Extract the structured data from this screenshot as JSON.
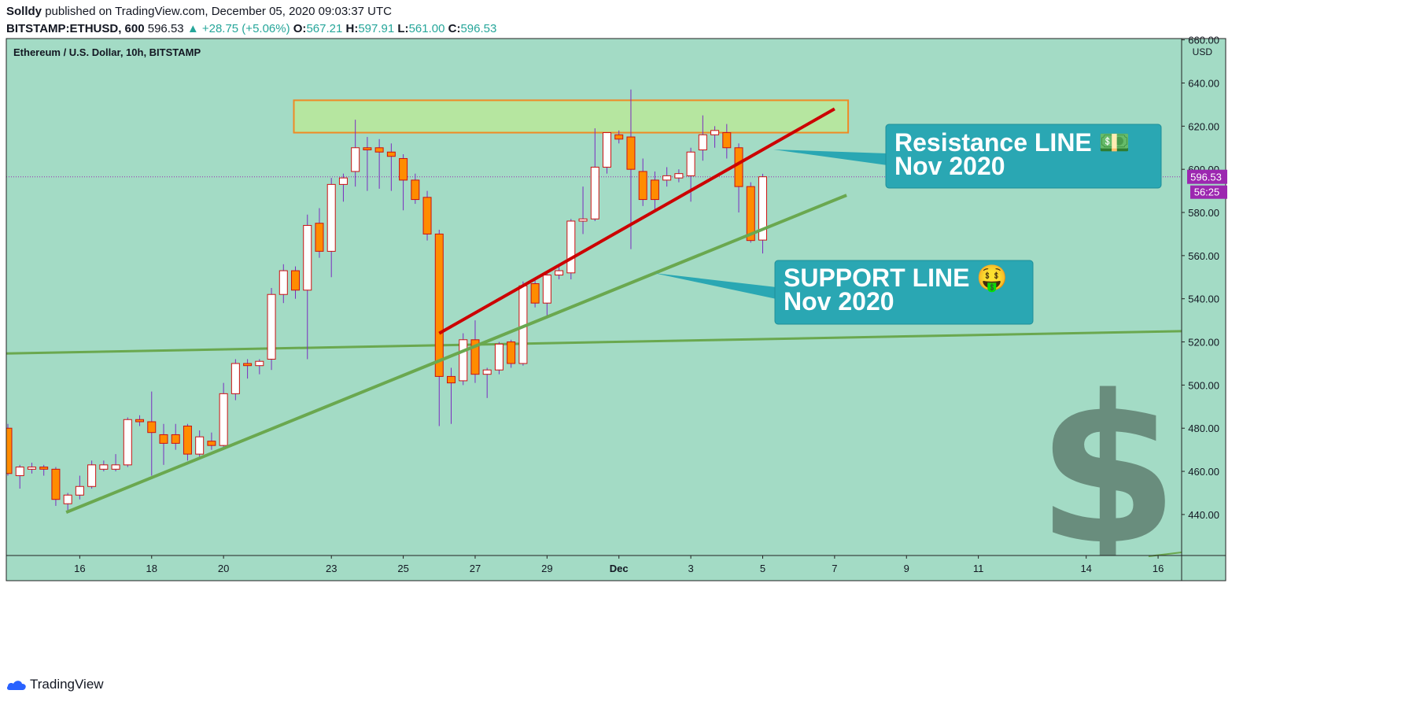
{
  "header": {
    "publisher": "Solldy",
    "published_text": "published on TradingView.com, December 05, 2020 09:03:37 UTC",
    "symbol": "BITSTAMP:ETHUSD, 600",
    "last": "596.53",
    "change": "+28.75 (+5.06%)",
    "o_label": "O:",
    "o_value": "567.21",
    "h_label": "H:",
    "h_value": "597.91",
    "l_label": "L:",
    "l_value": "561.00",
    "c_label": "C:",
    "c_value": "596.53"
  },
  "chart_title": "Ethereum / U.S. Dollar, 10h, BITSTAMP",
  "footer": {
    "brand": "TradingView"
  },
  "colors": {
    "background": "#a3dbc5",
    "bull_body": "#ffffff",
    "bear_body": "#ff8c00",
    "candle_border": "#cc1111",
    "resistance_line": "#cc0000",
    "support_line": "#6aa84f",
    "callout": "#2aa7b3",
    "price_tag": "#9c27b0"
  },
  "chart_data": {
    "type": "candlestick",
    "title": "Ethereum / U.S. Dollar, 10h, BITSTAMP",
    "ylabel": "USD",
    "ylim": [
      421,
      660
    ],
    "y_ticks": [
      "440.00",
      "460.00",
      "480.00",
      "500.00",
      "520.00",
      "540.00",
      "560.00",
      "580.00",
      "600.00",
      "620.00",
      "640.00",
      "660.00"
    ],
    "x_ticks": [
      {
        "label": "16",
        "i": 6
      },
      {
        "label": "18",
        "i": 12
      },
      {
        "label": "20",
        "i": 18
      },
      {
        "label": "23",
        "i": 27
      },
      {
        "label": "25",
        "i": 33
      },
      {
        "label": "27",
        "i": 39
      },
      {
        "label": "29",
        "i": 45
      },
      {
        "label": "Dec",
        "i": 51
      },
      {
        "label": "3",
        "i": 57
      },
      {
        "label": "5",
        "i": 63
      },
      {
        "label": "7",
        "i": 69
      },
      {
        "label": "9",
        "i": 75
      },
      {
        "label": "11",
        "i": 81
      },
      {
        "label": "14",
        "i": 90
      },
      {
        "label": "16",
        "i": 96
      }
    ],
    "candles": [
      {
        "i": 0,
        "o": 480,
        "h": 482,
        "l": 458,
        "c": 459
      },
      {
        "i": 1,
        "o": 458,
        "h": 463,
        "l": 452,
        "c": 462
      },
      {
        "i": 2,
        "o": 461,
        "h": 464,
        "l": 459,
        "c": 462
      },
      {
        "i": 3,
        "o": 462,
        "h": 463,
        "l": 458,
        "c": 461
      },
      {
        "i": 4,
        "o": 461,
        "h": 462,
        "l": 444,
        "c": 447
      },
      {
        "i": 5,
        "o": 445,
        "h": 450,
        "l": 442,
        "c": 449
      },
      {
        "i": 6,
        "o": 449,
        "h": 458,
        "l": 447,
        "c": 453
      },
      {
        "i": 7,
        "o": 453,
        "h": 465,
        "l": 452,
        "c": 463
      },
      {
        "i": 8,
        "o": 461,
        "h": 465,
        "l": 460,
        "c": 463
      },
      {
        "i": 9,
        "o": 461,
        "h": 468,
        "l": 460,
        "c": 463
      },
      {
        "i": 10,
        "o": 463,
        "h": 485,
        "l": 462,
        "c": 484
      },
      {
        "i": 11,
        "o": 484,
        "h": 486,
        "l": 481,
        "c": 483
      },
      {
        "i": 12,
        "o": 483,
        "h": 497,
        "l": 458,
        "c": 478
      },
      {
        "i": 13,
        "o": 477,
        "h": 482,
        "l": 463,
        "c": 473
      },
      {
        "i": 14,
        "o": 477,
        "h": 482,
        "l": 470,
        "c": 473
      },
      {
        "i": 15,
        "o": 481,
        "h": 482,
        "l": 465,
        "c": 468
      },
      {
        "i": 16,
        "o": 468,
        "h": 479,
        "l": 466,
        "c": 476
      },
      {
        "i": 17,
        "o": 474,
        "h": 478,
        "l": 470,
        "c": 472
      },
      {
        "i": 18,
        "o": 472,
        "h": 501,
        "l": 470,
        "c": 496
      },
      {
        "i": 19,
        "o": 496,
        "h": 512,
        "l": 493,
        "c": 510
      },
      {
        "i": 20,
        "o": 510,
        "h": 512,
        "l": 503,
        "c": 509
      },
      {
        "i": 21,
        "o": 509,
        "h": 512,
        "l": 505,
        "c": 511
      },
      {
        "i": 22,
        "o": 512,
        "h": 545,
        "l": 507,
        "c": 542
      },
      {
        "i": 23,
        "o": 542,
        "h": 556,
        "l": 538,
        "c": 553
      },
      {
        "i": 24,
        "o": 553,
        "h": 555,
        "l": 540,
        "c": 544
      },
      {
        "i": 25,
        "o": 544,
        "h": 579,
        "l": 512,
        "c": 574
      },
      {
        "i": 26,
        "o": 575,
        "h": 582,
        "l": 559,
        "c": 562
      },
      {
        "i": 27,
        "o": 562,
        "h": 596,
        "l": 550,
        "c": 593
      },
      {
        "i": 28,
        "o": 593,
        "h": 598,
        "l": 585,
        "c": 596
      },
      {
        "i": 29,
        "o": 599,
        "h": 623,
        "l": 592,
        "c": 610
      },
      {
        "i": 30,
        "o": 610,
        "h": 615,
        "l": 590,
        "c": 609
      },
      {
        "i": 31,
        "o": 610,
        "h": 614,
        "l": 591,
        "c": 608
      },
      {
        "i": 32,
        "o": 608,
        "h": 612,
        "l": 590,
        "c": 606
      },
      {
        "i": 33,
        "o": 605,
        "h": 607,
        "l": 581,
        "c": 595
      },
      {
        "i": 34,
        "o": 595,
        "h": 598,
        "l": 584,
        "c": 586
      },
      {
        "i": 35,
        "o": 587,
        "h": 590,
        "l": 567,
        "c": 570
      },
      {
        "i": 36,
        "o": 570,
        "h": 572,
        "l": 481,
        "c": 504
      },
      {
        "i": 37,
        "o": 504,
        "h": 508,
        "l": 482,
        "c": 501
      },
      {
        "i": 38,
        "o": 502,
        "h": 524,
        "l": 500,
        "c": 521
      },
      {
        "i": 39,
        "o": 521,
        "h": 530,
        "l": 501,
        "c": 505
      },
      {
        "i": 40,
        "o": 505,
        "h": 508,
        "l": 494,
        "c": 507
      },
      {
        "i": 41,
        "o": 507,
        "h": 520,
        "l": 505,
        "c": 519
      },
      {
        "i": 42,
        "o": 520,
        "h": 521,
        "l": 508,
        "c": 510
      },
      {
        "i": 43,
        "o": 510,
        "h": 548,
        "l": 509,
        "c": 546
      },
      {
        "i": 44,
        "o": 547,
        "h": 549,
        "l": 536,
        "c": 538
      },
      {
        "i": 45,
        "o": 538,
        "h": 552,
        "l": 531,
        "c": 551
      },
      {
        "i": 46,
        "o": 551,
        "h": 556,
        "l": 549,
        "c": 553
      },
      {
        "i": 47,
        "o": 552,
        "h": 577,
        "l": 549,
        "c": 576
      },
      {
        "i": 48,
        "o": 576,
        "h": 592,
        "l": 570,
        "c": 577
      },
      {
        "i": 49,
        "o": 577,
        "h": 619,
        "l": 576,
        "c": 601
      },
      {
        "i": 50,
        "o": 601,
        "h": 617,
        "l": 598,
        "c": 617
      },
      {
        "i": 51,
        "o": 616,
        "h": 618,
        "l": 612,
        "c": 614
      },
      {
        "i": 52,
        "o": 615,
        "h": 637,
        "l": 563,
        "c": 600
      },
      {
        "i": 53,
        "o": 599,
        "h": 605,
        "l": 583,
        "c": 586
      },
      {
        "i": 54,
        "o": 595,
        "h": 599,
        "l": 580,
        "c": 586
      },
      {
        "i": 55,
        "o": 595,
        "h": 601,
        "l": 592,
        "c": 597
      },
      {
        "i": 56,
        "o": 596,
        "h": 600,
        "l": 594,
        "c": 598
      },
      {
        "i": 57,
        "o": 597,
        "h": 610,
        "l": 585,
        "c": 608
      },
      {
        "i": 58,
        "o": 609,
        "h": 625,
        "l": 604,
        "c": 616
      },
      {
        "i": 59,
        "o": 616,
        "h": 620,
        "l": 610,
        "c": 618
      },
      {
        "i": 60,
        "o": 617,
        "h": 621,
        "l": 605,
        "c": 610
      },
      {
        "i": 61,
        "o": 610,
        "h": 612,
        "l": 580,
        "c": 592
      },
      {
        "i": 62,
        "o": 592,
        "h": 594,
        "l": 566,
        "c": 567
      },
      {
        "i": 63,
        "o": 567.21,
        "h": 597.91,
        "l": 561.0,
        "c": 596.53
      }
    ],
    "resistance_zone": {
      "i_start": 24,
      "i_end": 70,
      "low": 617,
      "high": 632
    },
    "resistance_line": {
      "i_start": 36,
      "v_start": 524,
      "i_end": 69,
      "v_end": 628
    },
    "support_line": {
      "i_start": 5,
      "v_start": 441,
      "i_end": 70,
      "v_end": 588
    },
    "long_line": {
      "i_start": -6,
      "v_start": 514,
      "i_end": 98,
      "v_end": 525
    },
    "last_price": {
      "value": "596.53",
      "countdown": "56:25"
    },
    "annotations": [
      {
        "line1": "Resistance LINE 💵",
        "line2": "Nov 2020"
      },
      {
        "line1": "SUPPORT LINE 🤑",
        "line2": "Nov 2020"
      }
    ]
  }
}
